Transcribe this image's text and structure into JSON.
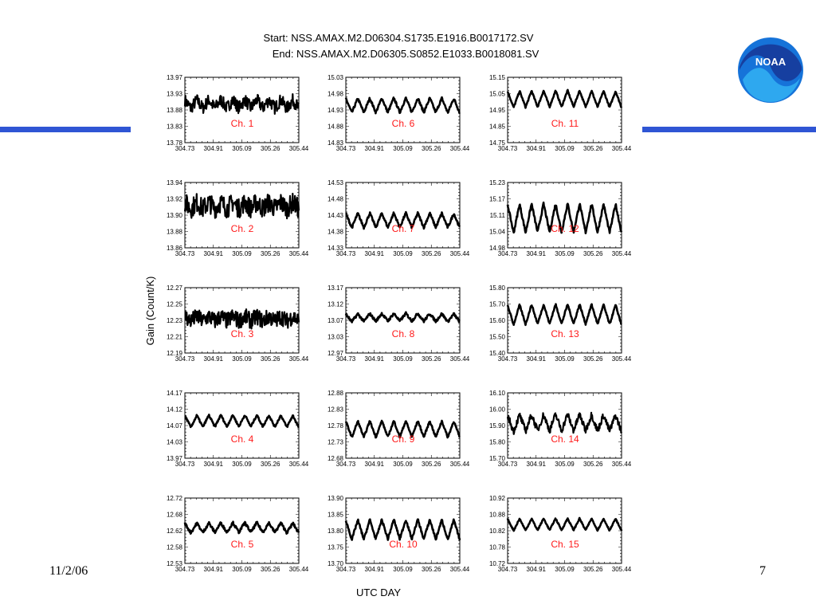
{
  "title_line1": "Start: NSS.AMAX.M2.D06304.S1735.E1916.B0017172.SV",
  "title_line2": "End: NSS.AMAX.M2.D06305.S0852.E1033.B0018081.SV",
  "footer": {
    "date": "11/2/06",
    "page": "7"
  },
  "logo": {
    "text": "NOAA",
    "icon": "noaa-logo"
  },
  "colors": {
    "accent_rule": "#2f55d4",
    "channel_label": "#ff1a1a",
    "logo_blue": "#1673d9"
  },
  "chart_data": {
    "type": "line",
    "xlabel": "UTC DAY",
    "ylabel": "Gain (Count/K)",
    "x_ticks": [
      "304.73",
      "304.91",
      "305.09",
      "305.26",
      "305.44"
    ],
    "xlim": [
      304.73,
      305.44
    ],
    "grid": false,
    "panels": [
      {
        "label": "Ch. 1",
        "ylim": [
          13.78,
          13.97
        ],
        "y_ticks": [
          "13.97",
          "13.93",
          "13.88",
          "13.83",
          "13.78"
        ],
        "base": 13.893,
        "amp": 0.012,
        "noise": 0.018,
        "curve": -0.015
      },
      {
        "label": "Ch. 6",
        "ylim": [
          14.83,
          15.03
        ],
        "y_ticks": [
          "15.03",
          "14.98",
          "14.93",
          "14.88",
          "14.83"
        ],
        "base": 14.945,
        "amp": 0.022,
        "noise": 0.004,
        "curve": -0.02
      },
      {
        "label": "Ch. 11",
        "ylim": [
          14.75,
          15.15
        ],
        "y_ticks": [
          "15.15",
          "15.05",
          "14.95",
          "14.85",
          "14.75"
        ],
        "base": 15.02,
        "amp": 0.05,
        "noise": 0.005,
        "curve": -0.03
      },
      {
        "label": "Ch. 2",
        "ylim": [
          13.86,
          13.94
        ],
        "y_ticks": [
          "13.94",
          "13.92",
          "13.90",
          "13.88",
          "13.86"
        ],
        "base": 13.912,
        "amp": 0.004,
        "noise": 0.012,
        "curve": -0.012
      },
      {
        "label": "Ch. 7",
        "ylim": [
          14.33,
          14.53
        ],
        "y_ticks": [
          "14.53",
          "14.48",
          "14.43",
          "14.38",
          "14.33"
        ],
        "base": 14.415,
        "amp": 0.022,
        "noise": 0.004,
        "curve": -0.02
      },
      {
        "label": "Ch. 12",
        "ylim": [
          14.98,
          15.23
        ],
        "y_ticks": [
          "15.23",
          "15.17",
          "15.11",
          "15.04",
          "14.98"
        ],
        "base": 15.095,
        "amp": 0.055,
        "noise": 0.006,
        "curve": -0.03
      },
      {
        "label": "Ch. 3",
        "ylim": [
          12.19,
          12.27
        ],
        "y_ticks": [
          "12.27",
          "12.25",
          "12.23",
          "12.21",
          "12.19"
        ],
        "base": 12.232,
        "amp": 0.003,
        "noise": 0.01,
        "curve": 0.0
      },
      {
        "label": "Ch. 8",
        "ylim": [
          12.97,
          13.17
        ],
        "y_ticks": [
          "13.17",
          "13.12",
          "13.07",
          "13.03",
          "12.97"
        ],
        "base": 13.08,
        "amp": 0.012,
        "noise": 0.004,
        "curve": -0.03
      },
      {
        "label": "Ch. 13",
        "ylim": [
          15.4,
          15.8
        ],
        "y_ticks": [
          "15.80",
          "15.70",
          "15.60",
          "15.50",
          "15.40"
        ],
        "base": 15.64,
        "amp": 0.06,
        "noise": 0.006,
        "curve": -0.04
      },
      {
        "label": "Ch. 4",
        "ylim": [
          13.97,
          14.17
        ],
        "y_ticks": [
          "14.17",
          "14.12",
          "14.07",
          "14.03",
          "13.97"
        ],
        "base": 14.085,
        "amp": 0.018,
        "noise": 0.003,
        "curve": -0.03
      },
      {
        "label": "Ch. 9",
        "ylim": [
          12.68,
          12.88
        ],
        "y_ticks": [
          "12.88",
          "12.83",
          "12.78",
          "12.73",
          "12.68"
        ],
        "base": 12.77,
        "amp": 0.025,
        "noise": 0.003,
        "curve": -0.02
      },
      {
        "label": "Ch. 14",
        "ylim": [
          15.7,
          16.1
        ],
        "y_ticks": [
          "16.10",
          "16.00",
          "15.90",
          "15.80",
          "15.70"
        ],
        "base": 15.92,
        "amp": 0.05,
        "noise": 0.02,
        "curve": -0.04
      },
      {
        "label": "Ch. 5",
        "ylim": [
          12.53,
          12.72
        ],
        "y_ticks": [
          "12.72",
          "12.68",
          "12.62",
          "12.58",
          "12.53"
        ],
        "base": 12.635,
        "amp": 0.014,
        "noise": 0.004,
        "curve": -0.03
      },
      {
        "label": "Ch. 10",
        "ylim": [
          13.7,
          13.9
        ],
        "y_ticks": [
          "13.90",
          "13.85",
          "13.80",
          "13.75",
          "13.70"
        ],
        "base": 13.805,
        "amp": 0.03,
        "noise": 0.004,
        "curve": -0.03
      },
      {
        "label": "Ch. 15",
        "ylim": [
          10.72,
          10.92
        ],
        "y_ticks": [
          "10.92",
          "10.88",
          "10.82",
          "10.78",
          "10.72"
        ],
        "base": 10.84,
        "amp": 0.018,
        "noise": 0.002,
        "curve": -0.02
      }
    ]
  }
}
